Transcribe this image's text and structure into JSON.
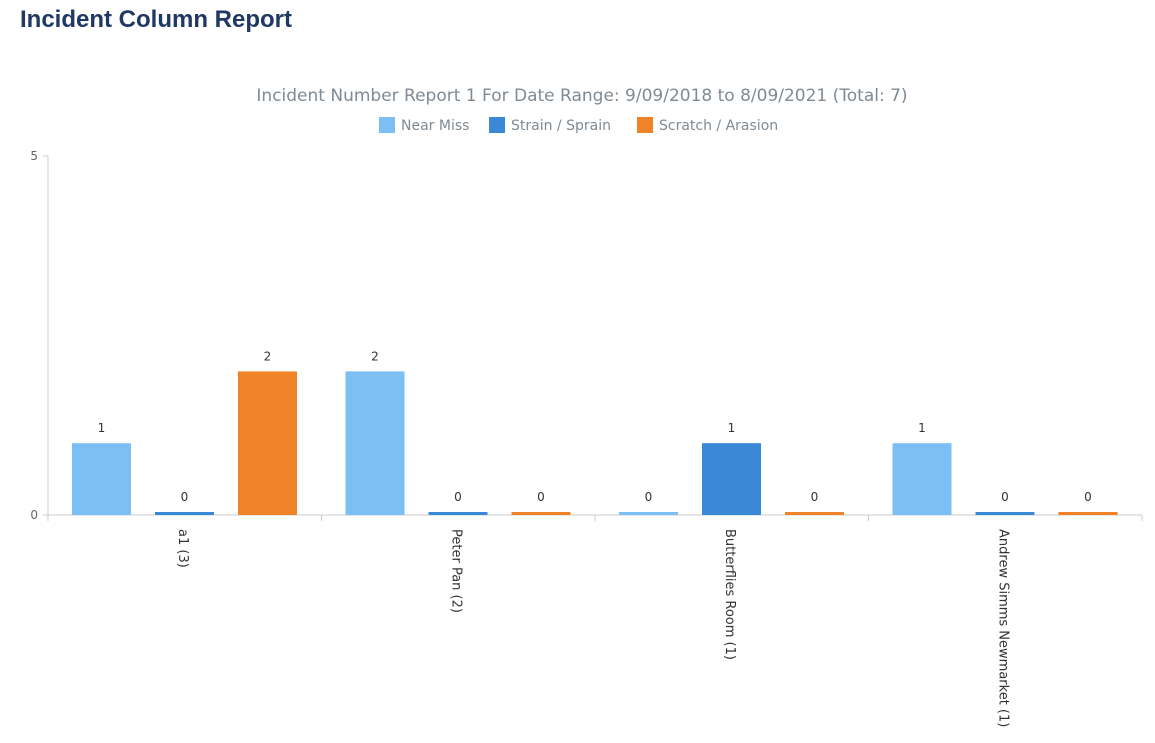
{
  "page": {
    "title": "Incident Column Report"
  },
  "chart_data": {
    "type": "bar",
    "title": "Incident Number Report 1 For Date Range: 9/09/2018 to 8/09/2021 (Total: 7)",
    "categories": [
      "a1 (3)",
      "Peter Pan (2)",
      "Butterflies Room (1)",
      "Andrew Simms Newmarket (1)"
    ],
    "series": [
      {
        "name": "Near Miss",
        "color": "#7cbff5",
        "values": [
          1,
          2,
          0,
          1
        ]
      },
      {
        "name": "Strain / Sprain",
        "color": "#3a89d6",
        "values": [
          0,
          0,
          1,
          0
        ]
      },
      {
        "name": "Scratch / Arasion",
        "color": "#f08228",
        "values": [
          2,
          0,
          0,
          0
        ]
      }
    ],
    "ylim": [
      0,
      5
    ],
    "yticks": [
      0,
      5
    ],
    "xlabel": "",
    "ylabel": "",
    "grid": false,
    "legend_position": "top-center",
    "data_labels": true
  }
}
